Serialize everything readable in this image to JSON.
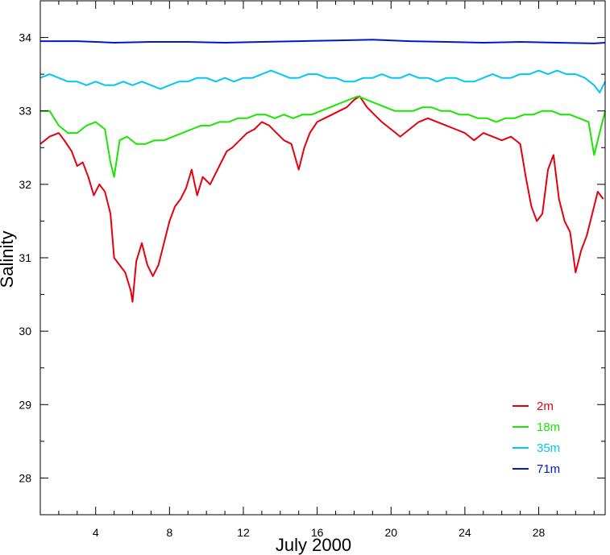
{
  "chart_data": {
    "type": "line",
    "xlabel": "July 2000",
    "ylabel": "Salinity",
    "xlim": [
      1,
      31.6
    ],
    "ylim": [
      27.5,
      34.5
    ],
    "x_ticks": [
      4,
      8,
      12,
      16,
      20,
      24,
      28
    ],
    "y_ticks": [
      28,
      29,
      30,
      31,
      32,
      33,
      34
    ],
    "grid": false,
    "legend_position": "bottom-right",
    "series": [
      {
        "name": "2m",
        "color": "#e6000e",
        "points": [
          [
            1.0,
            32.55
          ],
          [
            1.5,
            32.65
          ],
          [
            2.0,
            32.7
          ],
          [
            2.3,
            32.6
          ],
          [
            2.7,
            32.45
          ],
          [
            3.0,
            32.25
          ],
          [
            3.3,
            32.3
          ],
          [
            3.6,
            32.1
          ],
          [
            3.9,
            31.85
          ],
          [
            4.2,
            32.0
          ],
          [
            4.5,
            31.9
          ],
          [
            4.8,
            31.6
          ],
          [
            5.0,
            31.0
          ],
          [
            5.3,
            30.9
          ],
          [
            5.6,
            30.8
          ],
          [
            5.9,
            30.55
          ],
          [
            6.0,
            30.4
          ],
          [
            6.2,
            30.95
          ],
          [
            6.5,
            31.2
          ],
          [
            6.8,
            30.9
          ],
          [
            7.1,
            30.75
          ],
          [
            7.4,
            30.9
          ],
          [
            7.7,
            31.2
          ],
          [
            8.0,
            31.5
          ],
          [
            8.3,
            31.7
          ],
          [
            8.6,
            31.8
          ],
          [
            8.9,
            31.95
          ],
          [
            9.2,
            32.2
          ],
          [
            9.5,
            31.85
          ],
          [
            9.8,
            32.1
          ],
          [
            10.2,
            32.0
          ],
          [
            10.5,
            32.15
          ],
          [
            10.8,
            32.3
          ],
          [
            11.1,
            32.45
          ],
          [
            11.4,
            32.5
          ],
          [
            11.8,
            32.6
          ],
          [
            12.2,
            32.7
          ],
          [
            12.6,
            32.75
          ],
          [
            13.0,
            32.85
          ],
          [
            13.4,
            32.8
          ],
          [
            13.8,
            32.7
          ],
          [
            14.2,
            32.6
          ],
          [
            14.6,
            32.55
          ],
          [
            15.0,
            32.2
          ],
          [
            15.3,
            32.5
          ],
          [
            15.6,
            32.7
          ],
          [
            16.0,
            32.85
          ],
          [
            16.4,
            32.9
          ],
          [
            16.8,
            32.95
          ],
          [
            17.2,
            33.0
          ],
          [
            17.6,
            33.05
          ],
          [
            18.0,
            33.15
          ],
          [
            18.3,
            33.2
          ],
          [
            18.7,
            33.05
          ],
          [
            19.1,
            32.95
          ],
          [
            19.5,
            32.85
          ],
          [
            20.0,
            32.75
          ],
          [
            20.5,
            32.65
          ],
          [
            21.0,
            32.75
          ],
          [
            21.5,
            32.85
          ],
          [
            22.0,
            32.9
          ],
          [
            22.5,
            32.85
          ],
          [
            23.0,
            32.8
          ],
          [
            23.5,
            32.75
          ],
          [
            24.0,
            32.7
          ],
          [
            24.5,
            32.6
          ],
          [
            25.0,
            32.7
          ],
          [
            25.5,
            32.65
          ],
          [
            26.0,
            32.6
          ],
          [
            26.5,
            32.65
          ],
          [
            27.0,
            32.55
          ],
          [
            27.3,
            32.1
          ],
          [
            27.6,
            31.7
          ],
          [
            27.9,
            31.5
          ],
          [
            28.2,
            31.6
          ],
          [
            28.5,
            32.2
          ],
          [
            28.8,
            32.4
          ],
          [
            29.1,
            31.8
          ],
          [
            29.4,
            31.5
          ],
          [
            29.7,
            31.35
          ],
          [
            30.0,
            30.8
          ],
          [
            30.3,
            31.1
          ],
          [
            30.6,
            31.3
          ],
          [
            30.9,
            31.6
          ],
          [
            31.2,
            31.9
          ],
          [
            31.5,
            31.8
          ]
        ]
      },
      {
        "name": "18m",
        "color": "#19e600",
        "points": [
          [
            1.0,
            33.0
          ],
          [
            1.5,
            33.0
          ],
          [
            2.0,
            32.8
          ],
          [
            2.5,
            32.7
          ],
          [
            3.0,
            32.7
          ],
          [
            3.5,
            32.8
          ],
          [
            4.0,
            32.85
          ],
          [
            4.5,
            32.75
          ],
          [
            4.8,
            32.3
          ],
          [
            5.0,
            32.1
          ],
          [
            5.3,
            32.6
          ],
          [
            5.7,
            32.65
          ],
          [
            6.2,
            32.55
          ],
          [
            6.7,
            32.55
          ],
          [
            7.2,
            32.6
          ],
          [
            7.7,
            32.6
          ],
          [
            8.2,
            32.65
          ],
          [
            8.7,
            32.7
          ],
          [
            9.2,
            32.75
          ],
          [
            9.7,
            32.8
          ],
          [
            10.2,
            32.8
          ],
          [
            10.7,
            32.85
          ],
          [
            11.2,
            32.85
          ],
          [
            11.7,
            32.9
          ],
          [
            12.2,
            32.9
          ],
          [
            12.7,
            32.95
          ],
          [
            13.2,
            32.95
          ],
          [
            13.7,
            32.9
          ],
          [
            14.2,
            32.95
          ],
          [
            14.7,
            32.9
          ],
          [
            15.2,
            32.95
          ],
          [
            15.7,
            32.95
          ],
          [
            16.2,
            33.0
          ],
          [
            16.7,
            33.05
          ],
          [
            17.2,
            33.1
          ],
          [
            17.7,
            33.15
          ],
          [
            18.2,
            33.2
          ],
          [
            18.7,
            33.15
          ],
          [
            19.2,
            33.1
          ],
          [
            19.7,
            33.05
          ],
          [
            20.2,
            33.0
          ],
          [
            20.7,
            33.0
          ],
          [
            21.2,
            33.0
          ],
          [
            21.7,
            33.05
          ],
          [
            22.2,
            33.05
          ],
          [
            22.7,
            33.0
          ],
          [
            23.2,
            33.0
          ],
          [
            23.7,
            32.95
          ],
          [
            24.2,
            32.95
          ],
          [
            24.7,
            32.9
          ],
          [
            25.2,
            32.9
          ],
          [
            25.7,
            32.85
          ],
          [
            26.2,
            32.9
          ],
          [
            26.7,
            32.9
          ],
          [
            27.2,
            32.95
          ],
          [
            27.7,
            32.95
          ],
          [
            28.2,
            33.0
          ],
          [
            28.7,
            33.0
          ],
          [
            29.2,
            32.95
          ],
          [
            29.7,
            32.95
          ],
          [
            30.2,
            32.9
          ],
          [
            30.7,
            32.85
          ],
          [
            31.0,
            32.4
          ],
          [
            31.3,
            32.7
          ],
          [
            31.6,
            33.0
          ]
        ]
      },
      {
        "name": "35m",
        "color": "#00c8f0",
        "points": [
          [
            1.0,
            33.45
          ],
          [
            1.5,
            33.5
          ],
          [
            2.0,
            33.45
          ],
          [
            2.5,
            33.4
          ],
          [
            3.0,
            33.4
          ],
          [
            3.5,
            33.35
          ],
          [
            4.0,
            33.4
          ],
          [
            4.5,
            33.35
          ],
          [
            5.0,
            33.35
          ],
          [
            5.5,
            33.4
          ],
          [
            6.0,
            33.35
          ],
          [
            6.5,
            33.4
          ],
          [
            7.0,
            33.35
          ],
          [
            7.5,
            33.3
          ],
          [
            8.0,
            33.35
          ],
          [
            8.5,
            33.4
          ],
          [
            9.0,
            33.4
          ],
          [
            9.5,
            33.45
          ],
          [
            10.0,
            33.45
          ],
          [
            10.5,
            33.4
          ],
          [
            11.0,
            33.45
          ],
          [
            11.5,
            33.4
          ],
          [
            12.0,
            33.45
          ],
          [
            12.5,
            33.45
          ],
          [
            13.0,
            33.5
          ],
          [
            13.5,
            33.55
          ],
          [
            14.0,
            33.5
          ],
          [
            14.5,
            33.45
          ],
          [
            15.0,
            33.45
          ],
          [
            15.5,
            33.5
          ],
          [
            16.0,
            33.5
          ],
          [
            16.5,
            33.45
          ],
          [
            17.0,
            33.45
          ],
          [
            17.5,
            33.4
          ],
          [
            18.0,
            33.4
          ],
          [
            18.5,
            33.45
          ],
          [
            19.0,
            33.45
          ],
          [
            19.5,
            33.5
          ],
          [
            20.0,
            33.45
          ],
          [
            20.5,
            33.45
          ],
          [
            21.0,
            33.5
          ],
          [
            21.5,
            33.45
          ],
          [
            22.0,
            33.45
          ],
          [
            22.5,
            33.4
          ],
          [
            23.0,
            33.45
          ],
          [
            23.5,
            33.45
          ],
          [
            24.0,
            33.4
          ],
          [
            24.5,
            33.4
          ],
          [
            25.0,
            33.45
          ],
          [
            25.5,
            33.5
          ],
          [
            26.0,
            33.45
          ],
          [
            26.5,
            33.45
          ],
          [
            27.0,
            33.5
          ],
          [
            27.5,
            33.5
          ],
          [
            28.0,
            33.55
          ],
          [
            28.5,
            33.5
          ],
          [
            29.0,
            33.55
          ],
          [
            29.5,
            33.5
          ],
          [
            30.0,
            33.5
          ],
          [
            30.5,
            33.45
          ],
          [
            31.0,
            33.35
          ],
          [
            31.3,
            33.25
          ],
          [
            31.6,
            33.4
          ]
        ]
      },
      {
        "name": "71m",
        "color": "#0019c8",
        "points": [
          [
            1.0,
            33.95
          ],
          [
            3.0,
            33.95
          ],
          [
            5.0,
            33.93
          ],
          [
            7.0,
            33.94
          ],
          [
            9.0,
            33.94
          ],
          [
            11.0,
            33.93
          ],
          [
            13.0,
            33.94
          ],
          [
            15.0,
            33.95
          ],
          [
            17.0,
            33.96
          ],
          [
            19.0,
            33.97
          ],
          [
            21.0,
            33.95
          ],
          [
            23.0,
            33.94
          ],
          [
            25.0,
            33.93
          ],
          [
            27.0,
            33.94
          ],
          [
            29.0,
            33.93
          ],
          [
            31.0,
            33.92
          ],
          [
            31.6,
            33.93
          ]
        ]
      }
    ]
  }
}
